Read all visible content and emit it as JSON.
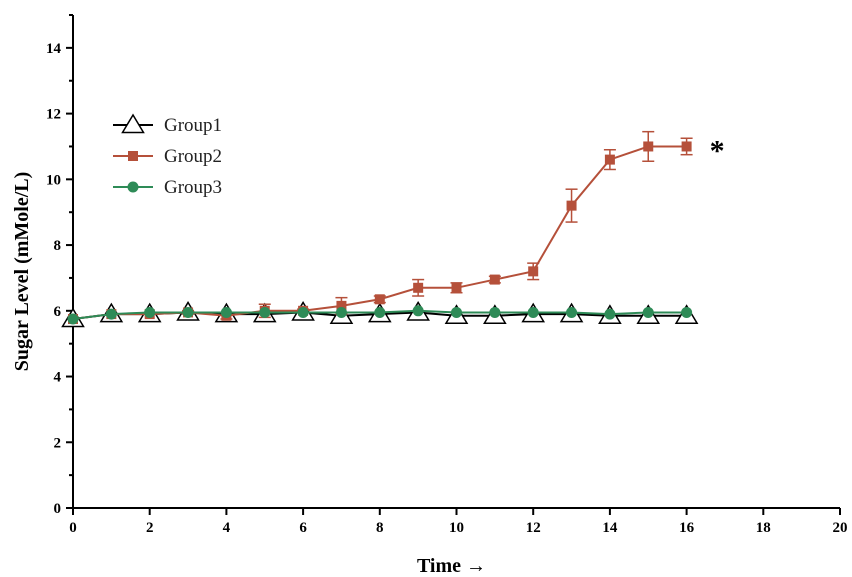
{
  "chart_data": {
    "type": "line",
    "xlabel": "Time →",
    "ylabel": "Sugar Level (mMole/L)",
    "xlim": [
      0,
      20
    ],
    "ylim": [
      0,
      15
    ],
    "xticks": [
      "0",
      "2",
      "4",
      "6",
      "8",
      "10",
      "12",
      "14",
      "16",
      "18",
      "20"
    ],
    "yticks": [
      "0",
      "2",
      "4",
      "6",
      "8",
      "10",
      "12",
      "14"
    ],
    "grid": false,
    "legend_position": "upper-left",
    "series": [
      {
        "name": "Group1",
        "marker": "triangle-open",
        "color": "#000000",
        "x": [
          0,
          1,
          2,
          3,
          4,
          5,
          6,
          7,
          8,
          9,
          10,
          11,
          12,
          13,
          14,
          15,
          16
        ],
        "y": [
          5.75,
          5.9,
          5.9,
          5.95,
          5.9,
          5.9,
          5.95,
          5.85,
          5.9,
          5.95,
          5.85,
          5.85,
          5.9,
          5.9,
          5.85,
          5.85,
          5.85
        ],
        "error": [
          0,
          0,
          0,
          0,
          0,
          0,
          0,
          0,
          0,
          0,
          0,
          0,
          0,
          0,
          0,
          0,
          0
        ]
      },
      {
        "name": "Group2",
        "marker": "square",
        "color": "#b5503a",
        "x": [
          0,
          1,
          2,
          3,
          4,
          5,
          6,
          7,
          8,
          9,
          10,
          11,
          12,
          13,
          14,
          15,
          16
        ],
        "y": [
          5.75,
          5.9,
          5.9,
          5.95,
          5.85,
          6.0,
          6.0,
          6.15,
          6.35,
          6.7,
          6.7,
          6.95,
          7.2,
          9.2,
          10.6,
          11.0,
          11.0
        ],
        "error": [
          0,
          0,
          0,
          0.05,
          0.1,
          0.2,
          0.05,
          0.25,
          0.1,
          0.25,
          0.15,
          0.1,
          0.25,
          0.5,
          0.3,
          0.45,
          0.25
        ]
      },
      {
        "name": "Group3",
        "marker": "circle",
        "color": "#2e8b57",
        "x": [
          0,
          1,
          2,
          3,
          4,
          5,
          6,
          7,
          8,
          9,
          10,
          11,
          12,
          13,
          14,
          15,
          16
        ],
        "y": [
          5.75,
          5.9,
          5.95,
          5.95,
          5.95,
          5.95,
          5.95,
          5.95,
          5.95,
          6.0,
          5.95,
          5.95,
          5.95,
          5.95,
          5.9,
          5.95,
          5.95
        ],
        "error": [
          0,
          0,
          0,
          0,
          0,
          0,
          0,
          0,
          0,
          0,
          0,
          0,
          0,
          0,
          0,
          0,
          0
        ]
      }
    ],
    "annotations": [
      {
        "text": "*",
        "x": 16.6,
        "y": 11.0
      }
    ]
  }
}
